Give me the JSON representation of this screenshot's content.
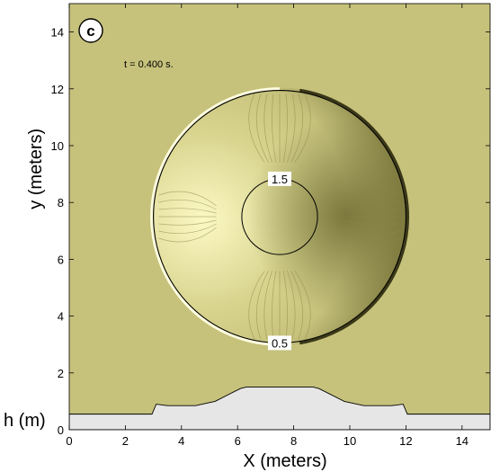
{
  "chart_data": {
    "type": "heatmap",
    "panel_label": "c",
    "annotation": "t = 0.400 s.",
    "xlabel": "X (meters)",
    "ylabel": "y (meters)",
    "h_label": "h (m)",
    "xlim": [
      0,
      15
    ],
    "ylim": [
      0,
      15
    ],
    "x_ticks": [
      "0",
      "2",
      "4",
      "6",
      "8",
      "10",
      "12",
      "14"
    ],
    "y_ticks": [
      "2",
      "4",
      "6",
      "8",
      "10",
      "12",
      "14"
    ],
    "h_ticks": [
      "0"
    ],
    "contours": [
      {
        "label": "1.5",
        "center": [
          7.5,
          7.5
        ],
        "radius": 1.35
      },
      {
        "label": "0.5",
        "center": [
          7.5,
          7.5
        ],
        "radius": 4.5
      }
    ],
    "bed_profile": {
      "name": "h (m)",
      "x": [
        0,
        2.95,
        3.1,
        3.5,
        4.5,
        5.2,
        6.1,
        6.3,
        8.7,
        8.9,
        9.8,
        10.5,
        11.5,
        11.9,
        12.05,
        15
      ],
      "h": [
        0.55,
        0.55,
        0.9,
        0.85,
        0.85,
        1.0,
        1.45,
        1.5,
        1.5,
        1.45,
        1.0,
        0.85,
        0.85,
        0.9,
        0.55,
        0.55
      ]
    },
    "colors": {
      "background_field": "#c6c27c",
      "bright_zone": "#fcf8c4",
      "dark_zone": "#6e6a32",
      "bed_fill": "#e6e6e6"
    },
    "grid": false
  }
}
